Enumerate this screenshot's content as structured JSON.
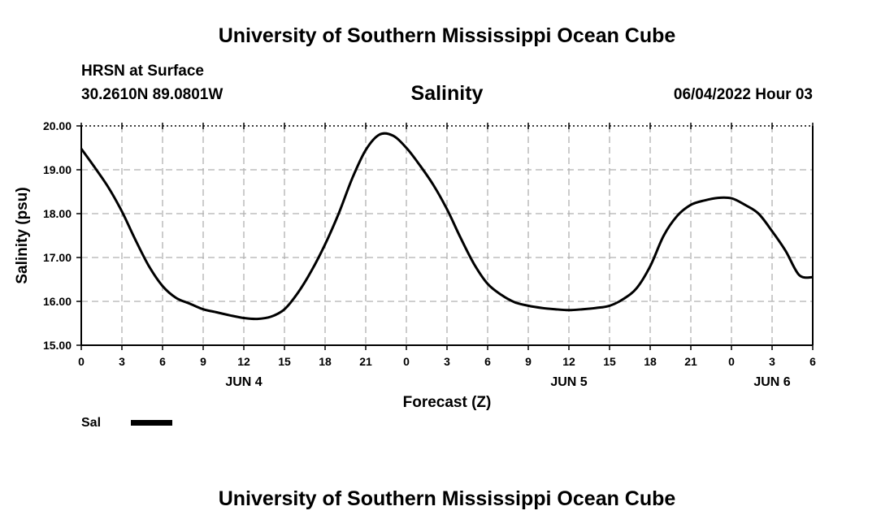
{
  "header": {
    "title": "University of Southern Mississippi Ocean Cube",
    "station": "HRSN at Surface",
    "coords": "30.2610N  89.0801W",
    "datetime": "06/04/2022 Hour 03"
  },
  "footer": {
    "title": "University of Southern Mississippi Ocean Cube"
  },
  "chart_data": {
    "type": "line",
    "title": "Salinity",
    "xlabel": "Forecast (Z)",
    "ylabel": "Salinity (psu)",
    "ylim": [
      15,
      20
    ],
    "xlim": [
      0,
      54
    ],
    "yticks": [
      "15.00",
      "16.00",
      "17.00",
      "18.00",
      "19.00",
      "20.00"
    ],
    "xtick_labels": [
      "0",
      "3",
      "6",
      "9",
      "12",
      "15",
      "18",
      "21",
      "0",
      "3",
      "6",
      "9",
      "12",
      "15",
      "18",
      "21",
      "0",
      "3",
      "6"
    ],
    "day_labels": [
      {
        "label": "JUN 4",
        "hour": 12
      },
      {
        "label": "JUN 5",
        "hour": 36
      },
      {
        "label": "JUN 6",
        "hour": 51
      }
    ],
    "grid": true,
    "legend": "bottom-left",
    "series": [
      {
        "name": "Sal",
        "color": "#000000",
        "x": [
          0,
          1,
          2,
          3,
          4,
          5,
          6,
          7,
          8,
          9,
          10,
          11,
          12,
          13,
          14,
          15,
          16,
          17,
          18,
          19,
          20,
          21,
          22,
          23,
          24,
          25,
          26,
          27,
          28,
          29,
          30,
          31,
          32,
          33,
          34,
          35,
          36,
          37,
          38,
          39,
          40,
          41,
          42,
          43,
          44,
          45,
          46,
          47,
          48,
          49,
          50,
          51,
          52,
          53,
          54
        ],
        "values": [
          19.48,
          19.05,
          18.6,
          18.05,
          17.4,
          16.8,
          16.35,
          16.08,
          15.95,
          15.82,
          15.75,
          15.68,
          15.62,
          15.6,
          15.65,
          15.82,
          16.2,
          16.7,
          17.3,
          18.0,
          18.8,
          19.45,
          19.8,
          19.78,
          19.5,
          19.1,
          18.65,
          18.1,
          17.45,
          16.85,
          16.4,
          16.15,
          15.98,
          15.9,
          15.85,
          15.82,
          15.8,
          15.82,
          15.85,
          15.9,
          16.05,
          16.3,
          16.8,
          17.5,
          17.95,
          18.2,
          18.3,
          18.36,
          18.35,
          18.2,
          18.0,
          17.6,
          17.15,
          16.6,
          16.55
        ]
      }
    ]
  }
}
